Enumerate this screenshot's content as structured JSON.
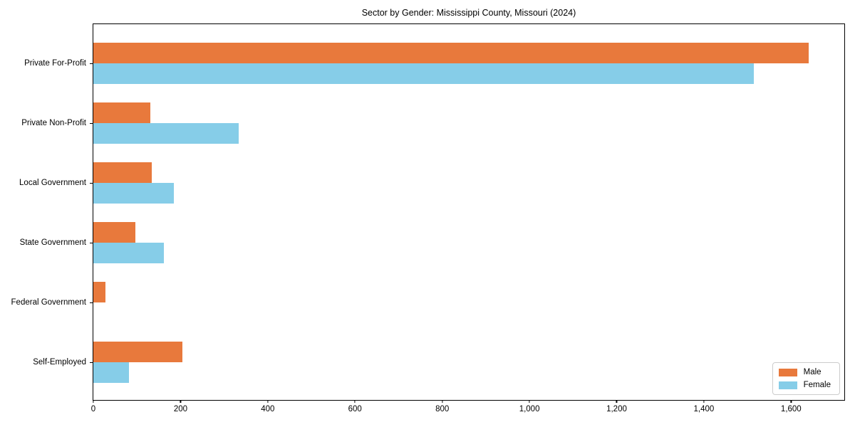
{
  "title": "Sector by Gender: Mississippi County, Missouri (2024)",
  "colors": {
    "male": "#E8793C",
    "female": "#86CDE8",
    "axis": "#000000",
    "legend_border": "#CCCCCC",
    "background": "#FFFFFF"
  },
  "legend": {
    "position": "lower right",
    "items": [
      {
        "label": "Male",
        "color_key": "male"
      },
      {
        "label": "Female",
        "color_key": "female"
      }
    ]
  },
  "chart_data": {
    "type": "bar",
    "orientation": "horizontal",
    "title": "Sector by Gender: Mississippi County, Missouri (2024)",
    "categories": [
      "Private For-Profit",
      "Private Non-Profit",
      "Local Government",
      "State Government",
      "Federal Government",
      "Self-Employed"
    ],
    "series": [
      {
        "name": "Male",
        "color": "#E8793C",
        "values": [
          1640,
          131,
          134,
          96,
          28,
          205
        ]
      },
      {
        "name": "Female",
        "color": "#86CDE8",
        "values": [
          1515,
          333,
          185,
          162,
          0,
          82
        ]
      }
    ],
    "xlabel": "",
    "ylabel": "",
    "xlim": [
      0,
      1722
    ],
    "x_ticks": [
      0,
      200,
      400,
      600,
      800,
      1000,
      1200,
      1400,
      1600
    ],
    "x_tick_labels": [
      "0",
      "200",
      "400",
      "600",
      "800",
      "1,000",
      "1,200",
      "1,400",
      "1,600"
    ],
    "grid": false,
    "legend_position": "lower right"
  }
}
